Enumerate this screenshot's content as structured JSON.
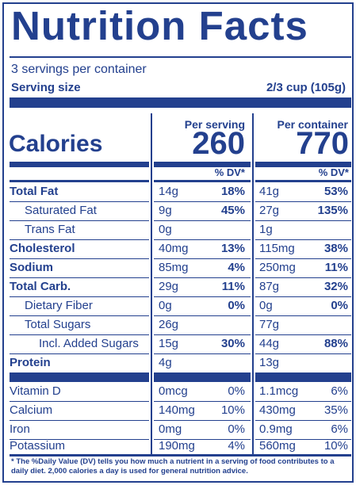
{
  "title": "Nutrition Facts",
  "servings_per_container": "3 servings per container",
  "serving_size_label": "Serving size",
  "serving_size_value": "2/3 cup (105g)",
  "col_per_serving": "Per serving",
  "col_per_container": "Per container",
  "calories_label": "Calories",
  "calories_serving": "260",
  "calories_container": "770",
  "dv_header": "% DV*",
  "nutrients": [
    {
      "name": "Total Fat",
      "s_amt": "14g",
      "s_dv": "18%",
      "c_amt": "41g",
      "c_dv": "53%"
    },
    {
      "name": "Saturated Fat",
      "s_amt": "9g",
      "s_dv": "45%",
      "c_amt": "27g",
      "c_dv": "135%"
    },
    {
      "name": "Trans Fat",
      "s_amt": "0g",
      "s_dv": "",
      "c_amt": "1g",
      "c_dv": ""
    },
    {
      "name": "Cholesterol",
      "s_amt": "40mg",
      "s_dv": "13%",
      "c_amt": "115mg",
      "c_dv": "38%"
    },
    {
      "name": "Sodium",
      "s_amt": "85mg",
      "s_dv": "4%",
      "c_amt": "250mg",
      "c_dv": "11%"
    },
    {
      "name": "Total Carb.",
      "s_amt": "29g",
      "s_dv": "11%",
      "c_amt": "87g",
      "c_dv": "32%"
    },
    {
      "name": "Dietary Fiber",
      "s_amt": "0g",
      "s_dv": "0%",
      "c_amt": "0g",
      "c_dv": "0%"
    },
    {
      "name": "Total Sugars",
      "s_amt": "26g",
      "s_dv": "",
      "c_amt": "77g",
      "c_dv": ""
    },
    {
      "name": "Incl. Added Sugars",
      "s_amt": "15g",
      "s_dv": "30%",
      "c_amt": "44g",
      "c_dv": "88%"
    },
    {
      "name": "Protein",
      "s_amt": "4g",
      "s_dv": "",
      "c_amt": "13g",
      "c_dv": ""
    }
  ],
  "vitamins": [
    {
      "name": "Vitamin D",
      "s_amt": "0mcg",
      "s_dv": "0%",
      "c_amt": "1.1mcg",
      "c_dv": "6%"
    },
    {
      "name": "Calcium",
      "s_amt": "140mg",
      "s_dv": "10%",
      "c_amt": "430mg",
      "c_dv": "35%"
    },
    {
      "name": "Iron",
      "s_amt": "0mg",
      "s_dv": "0%",
      "c_amt": "0.9mg",
      "c_dv": "6%"
    },
    {
      "name": "Potassium",
      "s_amt": "190mg",
      "s_dv": "4%",
      "c_amt": "560mg",
      "c_dv": "10%"
    }
  ],
  "footnote": "* The %Daily Value (DV) tells you how much a nutrient in a serving of food contributes to a daily diet. 2,000 calories a day is used for general nutrition advice.",
  "colors": {
    "ink": "#23408e",
    "background": "#ffffff"
  }
}
